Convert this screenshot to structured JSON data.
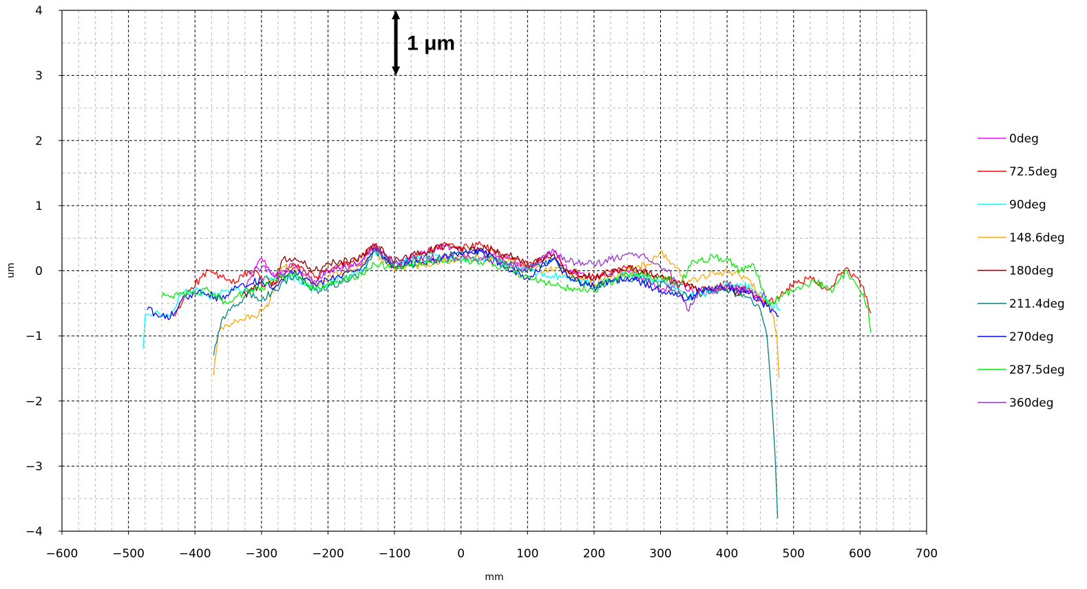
{
  "chart_data": {
    "type": "line",
    "title": "",
    "xlabel": "mm",
    "ylabel": "um",
    "xlim": [
      -600,
      700
    ],
    "ylim": [
      -4,
      4
    ],
    "x_ticks": [
      "−600",
      "−500",
      "−400",
      "−300",
      "−200",
      "−100",
      "0",
      "100",
      "200",
      "300",
      "400",
      "500",
      "600",
      "700"
    ],
    "y_ticks": [
      "4",
      "3",
      "2",
      "1",
      "0",
      "−1",
      "−2",
      "−3",
      "−4"
    ],
    "grid": true,
    "legend_position": "right",
    "annotation": {
      "text": "1 μm",
      "y_from": 3,
      "y_to": 4,
      "x": -100
    },
    "series": [
      {
        "name": "0deg",
        "color": "#ff00ff",
        "x": [
          -330,
          -300,
          -280,
          -250,
          -220,
          -200,
          -150,
          -130,
          -100,
          -50,
          -20,
          0,
          30,
          70,
          100,
          140,
          160,
          200,
          250,
          300,
          330,
          360,
          400,
          430,
          460
        ],
        "y": [
          -0.4,
          0.2,
          -0.1,
          0.1,
          -0.2,
          0.0,
          0.15,
          0.4,
          0.1,
          0.3,
          0.4,
          0.25,
          0.3,
          0.2,
          0.05,
          0.3,
          0.0,
          -0.1,
          0.0,
          -0.3,
          -0.2,
          -0.4,
          -0.2,
          -0.3,
          -0.5
        ]
      },
      {
        "name": "72.5deg",
        "color": "#ff0000",
        "x": [
          -430,
          -410,
          -390,
          -380,
          -360,
          -340,
          -320,
          -300,
          -280,
          -250,
          -220,
          -200,
          -150,
          -130,
          -100,
          -50,
          -20,
          0,
          30,
          70,
          100,
          140,
          160,
          200,
          250,
          300,
          330,
          360,
          400,
          430,
          460,
          480,
          500,
          530,
          550,
          580,
          600,
          610,
          616
        ],
        "y": [
          -0.7,
          -0.3,
          -0.1,
          0.0,
          -0.1,
          -0.2,
          0.0,
          -0.1,
          -0.2,
          0.1,
          -0.1,
          0.0,
          0.2,
          0.4,
          0.05,
          0.3,
          0.4,
          0.35,
          0.4,
          0.2,
          0.1,
          0.25,
          0.0,
          -0.1,
          0.05,
          -0.1,
          -0.2,
          -0.3,
          -0.2,
          -0.3,
          -0.5,
          -0.4,
          -0.2,
          -0.1,
          -0.3,
          0.05,
          -0.2,
          -0.4,
          -0.65
        ]
      },
      {
        "name": "90deg",
        "color": "#00ffff",
        "x": [
          -478,
          -475,
          -460,
          -440,
          -420,
          -400,
          -380,
          -350,
          -320,
          -290,
          -250,
          -220,
          -200,
          -150,
          -130,
          -100,
          -50,
          0,
          50,
          100,
          150,
          200,
          250,
          300,
          340,
          380,
          400,
          420,
          440,
          460,
          480
        ],
        "y": [
          -1.2,
          -0.7,
          -0.65,
          -0.7,
          -0.35,
          -0.3,
          -0.4,
          -0.3,
          -0.3,
          -0.1,
          -0.1,
          -0.3,
          -0.2,
          0.0,
          0.3,
          0.1,
          0.25,
          0.2,
          0.15,
          0.0,
          -0.1,
          -0.2,
          -0.05,
          -0.15,
          -0.4,
          -0.3,
          -0.2,
          -0.2,
          -0.3,
          -0.45,
          -0.6
        ]
      },
      {
        "name": "148.6deg",
        "color": "#ffa500",
        "x": [
          -372,
          -365,
          -350,
          -330,
          -310,
          -290,
          -270,
          -250,
          -220,
          -200,
          -150,
          -130,
          -100,
          -50,
          0,
          50,
          100,
          150,
          200,
          250,
          280,
          300,
          320,
          340,
          360,
          400,
          430,
          450,
          465,
          475,
          478
        ],
        "y": [
          -1.6,
          -0.95,
          -0.85,
          -0.75,
          -0.7,
          -0.55,
          0.05,
          0.05,
          -0.2,
          -0.1,
          0.05,
          0.3,
          0.0,
          0.1,
          0.2,
          0.2,
          0.05,
          0.0,
          -0.2,
          0.0,
          0.1,
          0.3,
          0.1,
          -0.2,
          -0.1,
          0.0,
          -0.1,
          -0.4,
          -0.5,
          -1.0,
          -1.65
        ]
      },
      {
        "name": "180deg",
        "color": "#8b0000",
        "x": [
          -330,
          -300,
          -280,
          -270,
          -250,
          -220,
          -200,
          -150,
          -130,
          -100,
          -50,
          -20,
          0,
          30,
          70,
          100,
          140,
          160,
          200,
          250,
          300,
          330,
          360,
          400,
          430
        ],
        "y": [
          -0.4,
          -0.2,
          -0.2,
          0.15,
          0.2,
          0.0,
          0.1,
          0.2,
          0.4,
          0.15,
          0.3,
          0.4,
          0.3,
          0.35,
          0.25,
          0.1,
          0.25,
          0.0,
          -0.1,
          0.05,
          -0.1,
          -0.2,
          -0.3,
          -0.3,
          -0.35
        ]
      },
      {
        "name": "211.4deg",
        "color": "#008080",
        "x": [
          -372,
          -360,
          -340,
          -320,
          -300,
          -280,
          -250,
          -220,
          -200,
          -150,
          -130,
          -100,
          -50,
          0,
          30,
          70,
          100,
          140,
          160,
          200,
          250,
          300,
          340,
          380,
          400,
          430,
          450,
          460,
          466,
          472,
          476
        ],
        "y": [
          -1.3,
          -0.75,
          -0.55,
          -0.35,
          -0.45,
          -0.3,
          -0.05,
          -0.3,
          -0.25,
          -0.05,
          0.3,
          0.05,
          0.2,
          0.25,
          0.3,
          0.1,
          0.0,
          0.2,
          -0.1,
          -0.25,
          -0.1,
          -0.2,
          -0.4,
          -0.3,
          -0.3,
          -0.4,
          -0.6,
          -1.0,
          -1.8,
          -2.8,
          -3.8
        ]
      },
      {
        "name": "270deg",
        "color": "#0000ff",
        "x": [
          -472,
          -460,
          -450,
          -440,
          -420,
          -400,
          -380,
          -360,
          -330,
          -300,
          -280,
          -250,
          -220,
          -200,
          -150,
          -130,
          -100,
          -50,
          0,
          30,
          70,
          100,
          140,
          160,
          200,
          250,
          300,
          340,
          360,
          400,
          430,
          460,
          478
        ],
        "y": [
          -0.6,
          -0.65,
          -0.7,
          -0.75,
          -0.45,
          -0.35,
          -0.35,
          -0.45,
          -0.2,
          -0.15,
          -0.25,
          0.0,
          -0.2,
          -0.15,
          0.05,
          0.35,
          0.05,
          0.15,
          0.25,
          0.3,
          0.05,
          -0.1,
          0.2,
          -0.1,
          -0.25,
          -0.1,
          -0.3,
          -0.45,
          -0.3,
          -0.25,
          -0.3,
          -0.55,
          -0.7
        ]
      },
      {
        "name": "287.5deg",
        "color": "#00ee00",
        "x": [
          -450,
          -420,
          -400,
          -380,
          -350,
          -320,
          -300,
          -280,
          -250,
          -220,
          -200,
          -150,
          -130,
          -100,
          -50,
          0,
          50,
          100,
          150,
          200,
          250,
          300,
          330,
          350,
          380,
          400,
          420,
          440,
          460,
          480,
          500,
          530,
          560,
          580,
          600,
          612,
          616
        ],
        "y": [
          -0.4,
          -0.35,
          -0.35,
          -0.3,
          -0.5,
          -0.3,
          -0.25,
          -0.15,
          -0.05,
          -0.3,
          -0.2,
          -0.05,
          0.1,
          0.05,
          0.15,
          0.15,
          0.1,
          -0.1,
          -0.25,
          -0.3,
          -0.05,
          -0.1,
          -0.2,
          0.15,
          0.2,
          0.2,
          0.0,
          0.1,
          -0.5,
          -0.4,
          -0.3,
          -0.15,
          -0.3,
          0.0,
          -0.3,
          -0.55,
          -0.95
        ]
      },
      {
        "name": "360deg",
        "color": "#9932cc",
        "x": [
          -320,
          -300,
          -280,
          -250,
          -220,
          -200,
          -150,
          -130,
          -100,
          -50,
          0,
          30,
          70,
          100,
          140,
          160,
          200,
          250,
          280,
          300,
          320,
          340,
          360,
          400,
          430,
          460
        ],
        "y": [
          0.0,
          0.05,
          -0.1,
          0.05,
          -0.15,
          0.0,
          0.1,
          0.35,
          0.1,
          0.2,
          0.2,
          0.2,
          0.1,
          0.05,
          0.3,
          0.15,
          0.1,
          0.25,
          0.2,
          0.05,
          -0.1,
          -0.6,
          -0.3,
          -0.25,
          -0.3,
          -0.4
        ]
      }
    ]
  }
}
